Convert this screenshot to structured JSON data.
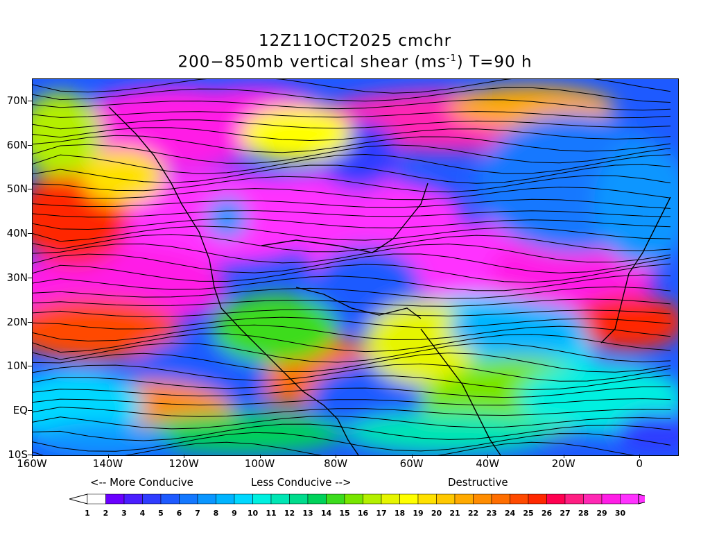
{
  "title": {
    "line1": "12Z11OCT2025 cmchr",
    "line2_pre": "200−850mb vertical shear (ms",
    "line2_sup": "-1",
    "line2_post": ") T=90 h"
  },
  "axes": {
    "lat_labels": [
      "70N",
      "60N",
      "50N",
      "40N",
      "30N",
      "20N",
      "10N",
      "EQ",
      "10S"
    ],
    "lat_values": [
      70,
      60,
      50,
      40,
      30,
      20,
      10,
      0,
      -10
    ],
    "lon_labels": [
      "160W",
      "140W",
      "120W",
      "100W",
      "80W",
      "60W",
      "40W",
      "20W",
      "0"
    ],
    "lon_values": [
      -160,
      -140,
      -120,
      -100,
      -80,
      -60,
      -40,
      -20,
      0
    ],
    "lon_range": [
      -160,
      10
    ],
    "lat_range": [
      -10,
      75
    ]
  },
  "legend": {
    "more_conducive": "<-- More Conducive",
    "less_conducive": "Less Conducive -->",
    "destructive": "Destructive",
    "ticks": [
      "1",
      "2",
      "3",
      "4",
      "5",
      "6",
      "7",
      "8",
      "9",
      "10",
      "11",
      "12",
      "13",
      "14",
      "15",
      "16",
      "17",
      "18",
      "19",
      "20",
      "21",
      "22",
      "23",
      "24",
      "25",
      "26",
      "27",
      "28",
      "29",
      "30"
    ],
    "colors": [
      "#ffffff",
      "#6a00ff",
      "#4a1eff",
      "#2f3cff",
      "#1e5aff",
      "#1478ff",
      "#0a96ff",
      "#00b4ff",
      "#00d8ff",
      "#00f0e0",
      "#00e6b4",
      "#00dc8c",
      "#00d25a",
      "#3cdc1e",
      "#78e600",
      "#b4f000",
      "#e6f500",
      "#ffff00",
      "#ffe100",
      "#ffc800",
      "#ffaa00",
      "#ff8c00",
      "#ff6e00",
      "#ff4a00",
      "#ff2800",
      "#ff0050",
      "#ff1e82",
      "#ff28b4",
      "#ff1ee6",
      "#ff32ff"
    ],
    "under_color": "#ffffff",
    "over_color": "#ff32ff"
  }
}
